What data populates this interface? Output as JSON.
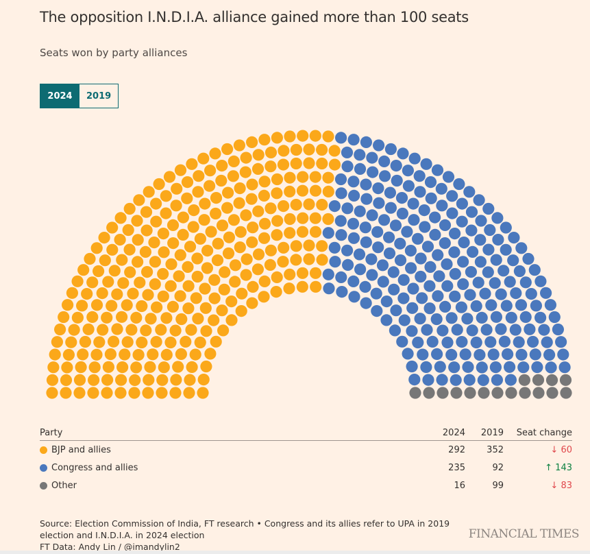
{
  "header": {
    "title": "The opposition I.N.D.I.A. alliance gained more than 100 seats",
    "subtitle": "Seats won by party alliances"
  },
  "toggle": {
    "options": [
      "2024",
      "2019"
    ],
    "selected": "2024"
  },
  "colors": {
    "BJP and allies": "#fba81a",
    "Congress and allies": "#4a78bd",
    "Other": "#777777",
    "accent": "#0d6b72",
    "background": "#fff1e5"
  },
  "chart_data": {
    "type": "parliament",
    "year": "2024",
    "categories": [
      "BJP and allies",
      "Congress and allies",
      "Other"
    ],
    "values": [
      292,
      235,
      16
    ],
    "total_seats": 543,
    "rows": 12
  },
  "table": {
    "headers": {
      "party": "Party",
      "y2024": "2024",
      "y2019": "2019",
      "change": "Seat change"
    },
    "rows": [
      {
        "party": "BJP and allies",
        "y2024": "292",
        "y2019": "352",
        "change": "↓ 60",
        "dir": "down",
        "color": "#fba81a"
      },
      {
        "party": "Congress and allies",
        "y2024": "235",
        "y2019": "92",
        "change": "↑ 143",
        "dir": "up",
        "color": "#4a78bd"
      },
      {
        "party": "Other",
        "y2024": "16",
        "y2019": "99",
        "change": "↓ 83",
        "dir": "down",
        "color": "#777777"
      }
    ]
  },
  "footer": {
    "source": "Source: Election Commission of India, FT research • Congress and its allies refer to UPA in 2019 election and I.N.D.I.A. in 2024 election",
    "credit": "FT Data: Andy Lin / @imandylin2",
    "logo": "FINANCIAL TIMES"
  }
}
